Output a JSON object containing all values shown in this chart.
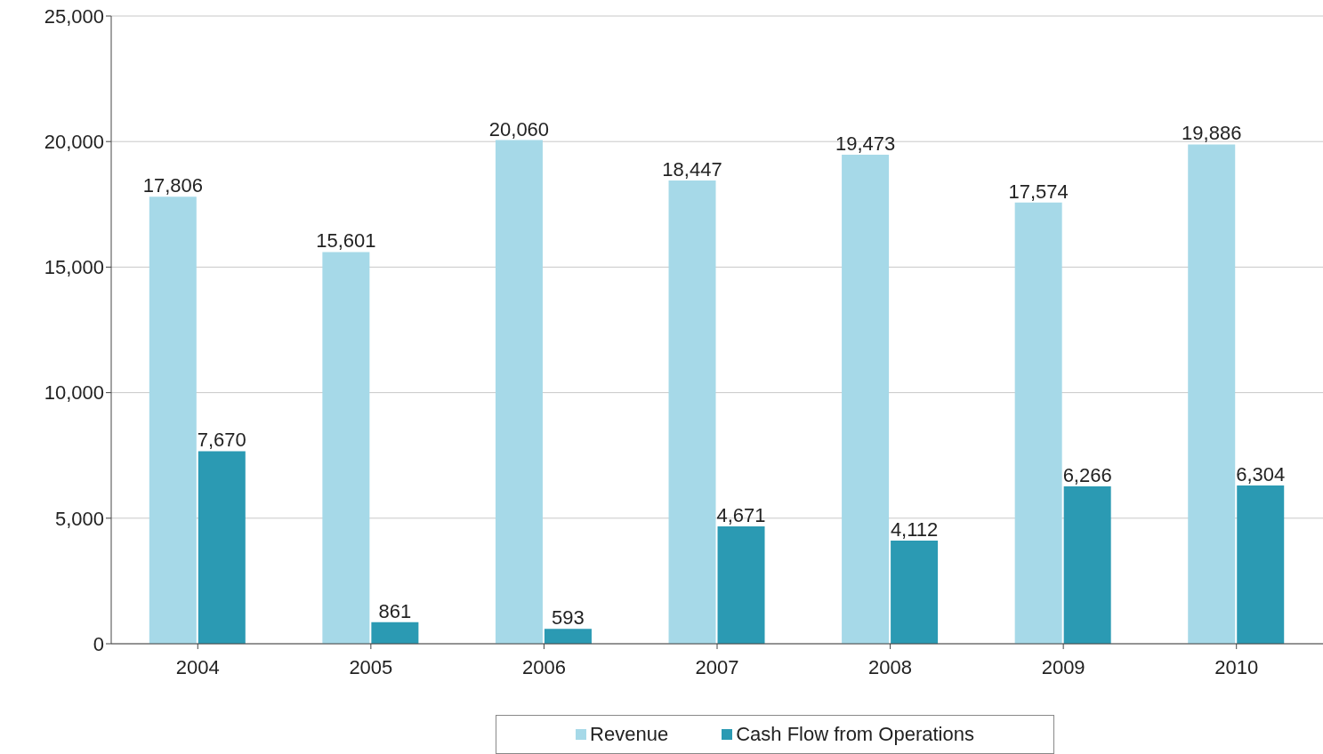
{
  "chart_data": {
    "type": "bar",
    "categories": [
      "2004",
      "2005",
      "2006",
      "2007",
      "2008",
      "2009",
      "2010"
    ],
    "series": [
      {
        "name": "Revenue",
        "color": "#a6d9e8",
        "values": [
          17806,
          15601,
          20060,
          18447,
          19473,
          17574,
          19886
        ],
        "value_labels": [
          "17,806",
          "15,601",
          "20,060",
          "18,447",
          "19,473",
          "17,574",
          "19,886"
        ]
      },
      {
        "name": "Cash Flow from Operations",
        "color": "#2b9ab3",
        "values": [
          7670,
          861,
          593,
          4671,
          4112,
          6266,
          6304
        ],
        "value_labels": [
          "7,670",
          "861",
          "593",
          "4,671",
          "4,112",
          "6,266",
          "6,304"
        ]
      }
    ],
    "ylim": [
      0,
      25000
    ],
    "yticks": [
      0,
      {
        "value": 5000,
        "label": "5,000"
      },
      {
        "value": 10000,
        "label": "10,000"
      },
      {
        "value": 15000,
        "label": "15,000"
      },
      {
        "value": 20000,
        "label": "20,000"
      },
      {
        "value": 25000,
        "label": "25,000"
      }
    ],
    "grid": "y",
    "legend": "bottom"
  }
}
